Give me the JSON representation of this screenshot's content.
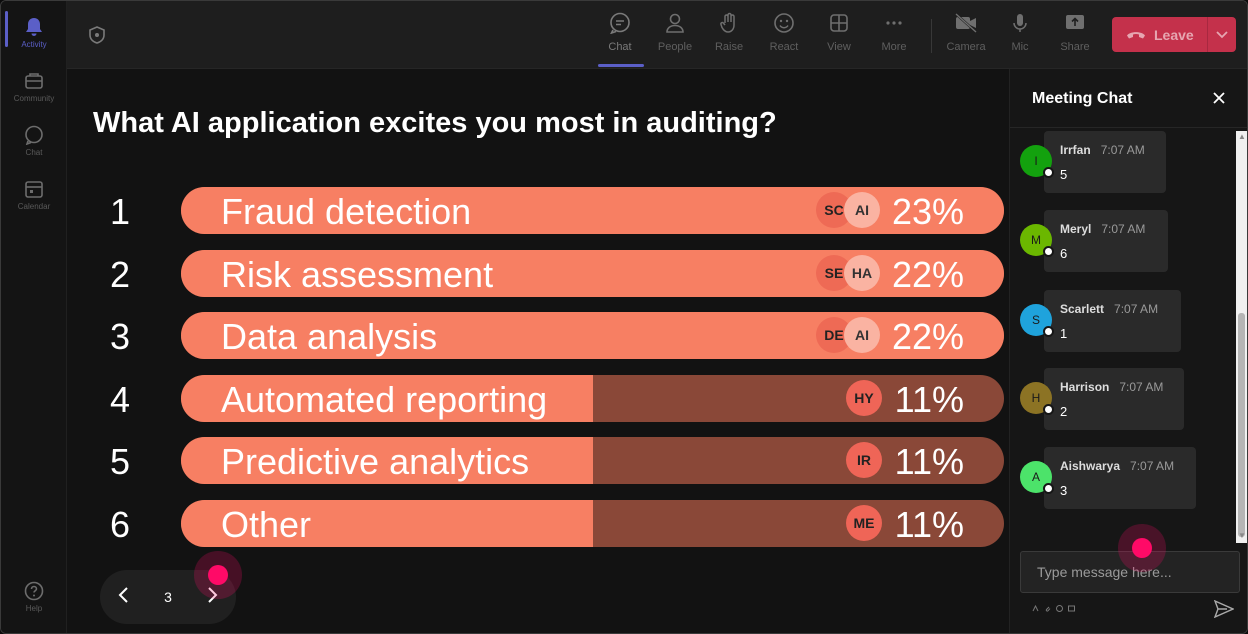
{
  "rail": {
    "items": [
      {
        "label": "Activity"
      },
      {
        "label": "Community"
      },
      {
        "label": "Chat"
      },
      {
        "label": "Calendar"
      }
    ],
    "help_label": "Help"
  },
  "toolbar": {
    "buttons": [
      {
        "label": "Chat",
        "icon": "chat-icon"
      },
      {
        "label": "People",
        "icon": "people-icon"
      },
      {
        "label": "Raise",
        "icon": "hand-icon"
      },
      {
        "label": "React",
        "icon": "smile-icon"
      },
      {
        "label": "View",
        "icon": "grid-icon"
      },
      {
        "label": "More",
        "icon": "more-icon"
      },
      {
        "label": "Camera",
        "icon": "camera-off-icon"
      },
      {
        "label": "Mic",
        "icon": "mic-icon"
      },
      {
        "label": "Share",
        "icon": "share-icon"
      }
    ],
    "leave_label": "Leave",
    "accent_color": "#5b5fc7",
    "leave_color": "#c4314b"
  },
  "poll": {
    "question": "What AI application excites you most in auditing?",
    "options": [
      {
        "number": "1",
        "label": "Fraud detection",
        "percent": "23%",
        "fill": 1.0,
        "avatars": [
          "SC",
          "AI"
        ]
      },
      {
        "number": "2",
        "label": "Risk assessment",
        "percent": "22%",
        "fill": 1.0,
        "avatars": [
          "SE",
          "HA"
        ]
      },
      {
        "number": "3",
        "label": "Data analysis",
        "percent": "22%",
        "fill": 1.0,
        "avatars": [
          "DE",
          "AI"
        ]
      },
      {
        "number": "4",
        "label": "Automated reporting",
        "percent": "11%",
        "fill": 0.5,
        "avatars": [
          "HY"
        ]
      },
      {
        "number": "5",
        "label": "Predictive analytics",
        "percent": "11%",
        "fill": 0.5,
        "avatars": [
          "IR"
        ]
      },
      {
        "number": "6",
        "label": "Other",
        "percent": "11%",
        "fill": 0.5,
        "avatars": [
          "ME"
        ]
      }
    ],
    "bar_color": "#f77f63",
    "bar_track_color": "#8a4838"
  },
  "pager": {
    "page": "3"
  },
  "chat": {
    "title": "Meeting Chat",
    "messages": [
      {
        "initial": "I",
        "name": "Irrfan",
        "time": "7:07 AM",
        "text": "5",
        "color": "#13a10e"
      },
      {
        "initial": "M",
        "name": "Meryl",
        "time": "7:07 AM",
        "text": "6",
        "color": "#6bb700"
      },
      {
        "initial": "S",
        "name": "Scarlett",
        "time": "7:07 AM",
        "text": "1",
        "color": "#1fa3dc"
      },
      {
        "initial": "H",
        "name": "Harrison",
        "time": "7:07 AM",
        "text": "2",
        "color": "#8c7324"
      },
      {
        "initial": "A",
        "name": "Aishwarya",
        "time": "7:07 AM",
        "text": "3",
        "color": "#4ce36a"
      }
    ],
    "input_placeholder": "Type message here..."
  }
}
